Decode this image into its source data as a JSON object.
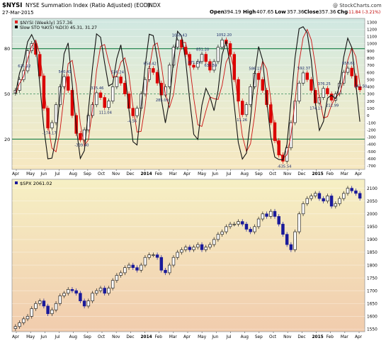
{
  "header": {
    "symbol": "$NYSI",
    "description": "NYSE Summation Index (Ratio Adjusted) (EOD)",
    "exchange": "INDX",
    "date": "27-Mar-2015",
    "open_label": "Open",
    "open": "394.19",
    "high_label": "High",
    "high": "407.65",
    "low_label": "Low",
    "low": "357.36",
    "close_label": "Close",
    "close": "357.36",
    "chg_label": "Chg",
    "chg": "-11.84 (-3.21%)",
    "watermark": "@ StockCharts.com"
  },
  "colors": {
    "candle_up": "#202020",
    "candle_down": "#dd0000",
    "spx_up": "#202020",
    "spx_down": "#1a1a9a",
    "stoch_k": "#111111",
    "stoch_d": "#cc1111",
    "level_line": "#2e8b57",
    "mid_line": "#3e8e5a"
  },
  "chart_data": [
    {
      "type": "candlestick",
      "panel": "top",
      "legend_label": "$NYSI (Weekly) 357.36",
      "stoch_label": "Slow STO %K(5) %D(3) 45.31, 31.27",
      "ylim": [
        -750,
        1350
      ],
      "y_ticks": [
        -700,
        -600,
        -500,
        -400,
        -300,
        -200,
        -100,
        0,
        100,
        200,
        300,
        400,
        500,
        600,
        700,
        800,
        900,
        1000,
        1100,
        1200,
        1300
      ],
      "stoch_levels": [
        80,
        50,
        20
      ],
      "x_ticks": [
        "Apr",
        "May",
        "Jun",
        "Jul",
        "Aug",
        "Sep",
        "Oct",
        "Nov",
        "Dec",
        "2014",
        "Feb",
        "Mar",
        "Apr",
        "May",
        "Jun",
        "Jul",
        "Aug",
        "Sep",
        "Oct",
        "Nov",
        "Dec",
        "2015",
        "Feb",
        "Mar",
        "Apr"
      ],
      "annotations": [
        {
          "label": "621.12",
          "value": 621.12
        },
        {
          "label": "-174.17",
          "value": -174.17
        },
        {
          "label": "540.43",
          "value": 540.43
        },
        {
          "label": "-339.40",
          "value": -339.4
        },
        {
          "label": "315.46",
          "value": 315.46
        },
        {
          "label": "111.04",
          "value": 111.04
        },
        {
          "label": "536.24",
          "value": 536.24
        },
        {
          "label": "-4.56",
          "value": -4.56
        },
        {
          "label": "654.42",
          "value": 654.42
        },
        {
          "label": "285.09",
          "value": 285.09
        },
        {
          "label": "1050.43",
          "value": 1050.43
        },
        {
          "label": "671.14",
          "value": 671.14
        },
        {
          "label": "851.20",
          "value": 851.2
        },
        {
          "label": "630.59",
          "value": 630.59
        },
        {
          "label": "1052.20",
          "value": 1052.2
        },
        {
          "label": "11.26",
          "value": 11.26
        },
        {
          "label": "586.15",
          "value": 586.15
        },
        {
          "label": "-635.54",
          "value": -635.54
        },
        {
          "label": "592.37",
          "value": 592.37
        },
        {
          "label": "174.17",
          "value": 174.17
        },
        {
          "label": "376.25",
          "value": 376.25
        },
        {
          "label": "212.99",
          "value": 212.99
        },
        {
          "label": "658.61",
          "value": 658.61
        },
        {
          "label": "341.50",
          "value": 341.5
        }
      ],
      "close_series": [
        350,
        500,
        621,
        900,
        1000,
        850,
        550,
        100,
        -174,
        -100,
        150,
        400,
        540,
        350,
        0,
        -250,
        -339,
        -200,
        0,
        150,
        315,
        250,
        111,
        200,
        400,
        536,
        450,
        300,
        100,
        -4,
        100,
        300,
        500,
        654,
        600,
        450,
        285,
        400,
        700,
        950,
        1050,
        950,
        850,
        700,
        671,
        750,
        851,
        750,
        631,
        750,
        950,
        1050,
        1000,
        850,
        500,
        200,
        11,
        150,
        400,
        586,
        500,
        350,
        150,
        -100,
        -350,
        -550,
        -636,
        -450,
        -100,
        200,
        450,
        592,
        500,
        350,
        174,
        250,
        376,
        300,
        213,
        300,
        450,
        600,
        659,
        550,
        400,
        357
      ]
    },
    {
      "type": "candlestick",
      "panel": "bottom",
      "legend_label": "$SPX 2061.02",
      "ylim": [
        1540,
        2135
      ],
      "y_ticks": [
        1550,
        1600,
        1650,
        1700,
        1750,
        1800,
        1850,
        1900,
        1950,
        2000,
        2050,
        2100
      ],
      "x_ticks": [
        "Apr",
        "May",
        "Jun",
        "Jul",
        "Aug",
        "Sep",
        "Oct",
        "Nov",
        "Dec",
        "2014",
        "Feb",
        "Mar",
        "Apr",
        "May",
        "Jun",
        "Jul",
        "Aug",
        "Sep",
        "Oct",
        "Nov",
        "Dec",
        "2015",
        "Feb",
        "Mar",
        "Apr"
      ],
      "close_series": [
        1560,
        1575,
        1590,
        1600,
        1630,
        1650,
        1660,
        1640,
        1610,
        1625,
        1650,
        1680,
        1690,
        1705,
        1700,
        1690,
        1660,
        1640,
        1660,
        1690,
        1700,
        1710,
        1690,
        1710,
        1740,
        1760,
        1770,
        1790,
        1800,
        1790,
        1780,
        1800,
        1830,
        1840,
        1840,
        1830,
        1780,
        1770,
        1800,
        1830,
        1850,
        1860,
        1870,
        1860,
        1870,
        1880,
        1860,
        1870,
        1880,
        1900,
        1920,
        1930,
        1950,
        1960,
        1960,
        1970,
        1960,
        1940,
        1930,
        1950,
        1980,
        2000,
        1990,
        2010,
        1990,
        1960,
        1920,
        1880,
        1860,
        1930,
        2000,
        2040,
        2060,
        2070,
        2080,
        2060,
        2050,
        2070,
        2030,
        2040,
        2060,
        2080,
        2100,
        2090,
        2080,
        2061
      ]
    }
  ]
}
